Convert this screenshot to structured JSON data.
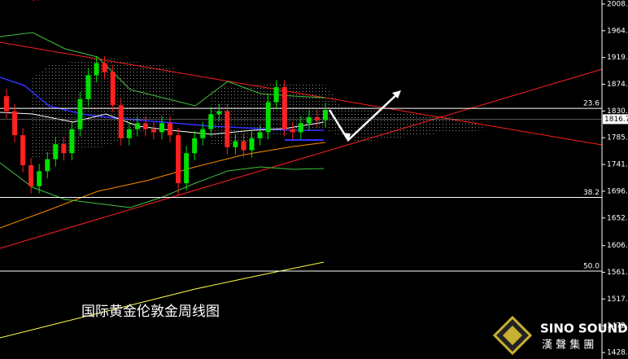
{
  "chart_data": {
    "type": "candlestick",
    "title": "国际黄金伦敦金周线图",
    "brand": "SINO SOUND",
    "brand_sub": "漢 聲 集 團",
    "ylim": [
      1417.2,
      2015.2
    ],
    "yticks": [
      2008.5,
      {
        "value": 1964,
        "label": "1964.0"
      },
      1919.4,
      1874.9,
      1830.3,
      1785.8,
      1741.2,
      1696.7,
      1652.1,
      1606.1,
      1561.7,
      1517.2,
      1472.6,
      {
        "value": 1428,
        "label": "1428.0"
      }
    ],
    "current_price": 1816.7,
    "levels": [
      {
        "value": 1834.6,
        "label": "23.6"
      },
      {
        "value": 1686.3,
        "label": "38.2"
      },
      {
        "value": 1563.6,
        "label": "50.0"
      }
    ],
    "up_color": "#00e000",
    "down_color": "#ff2020",
    "open": [
      1855,
      1830,
      1790,
      1740,
      1705,
      1730,
      1750,
      1775,
      1760,
      1800,
      1850,
      1890,
      1910,
      1895,
      1840,
      1785,
      1800,
      1810,
      1800,
      1795,
      1810,
      1790,
      1710,
      1760,
      1785,
      1800,
      1825,
      1830,
      1770,
      1780,
      1765,
      1785,
      1795,
      1845,
      1870,
      1800,
      1795,
      1810,
      1820,
      1815
    ],
    "high": [
      1867,
      1842,
      1802,
      1752,
      1742,
      1762,
      1787,
      1787,
      1812,
      1862,
      1902,
      1922,
      1922,
      1907,
      1852,
      1812,
      1822,
      1822,
      1812,
      1822,
      1822,
      1802,
      1772,
      1797,
      1812,
      1837,
      1842,
      1842,
      1792,
      1792,
      1797,
      1807,
      1857,
      1882,
      1882,
      1812,
      1822,
      1832,
      1832,
      1844
    ],
    "low": [
      1818,
      1778,
      1728,
      1693,
      1693,
      1718,
      1738,
      1748,
      1748,
      1788,
      1838,
      1878,
      1883,
      1828,
      1773,
      1773,
      1788,
      1788,
      1783,
      1783,
      1778,
      1690,
      1698,
      1748,
      1773,
      1788,
      1813,
      1758,
      1758,
      1753,
      1753,
      1773,
      1783,
      1833,
      1788,
      1783,
      1783,
      1798,
      1803,
      1803
    ],
    "close": [
      1830,
      1790,
      1740,
      1705,
      1730,
      1750,
      1775,
      1760,
      1800,
      1850,
      1890,
      1910,
      1895,
      1840,
      1785,
      1800,
      1810,
      1800,
      1795,
      1810,
      1790,
      1710,
      1760,
      1785,
      1800,
      1825,
      1830,
      1770,
      1780,
      1765,
      1785,
      1795,
      1845,
      1870,
      1800,
      1795,
      1810,
      1820,
      1815,
      1832
    ]
  }
}
